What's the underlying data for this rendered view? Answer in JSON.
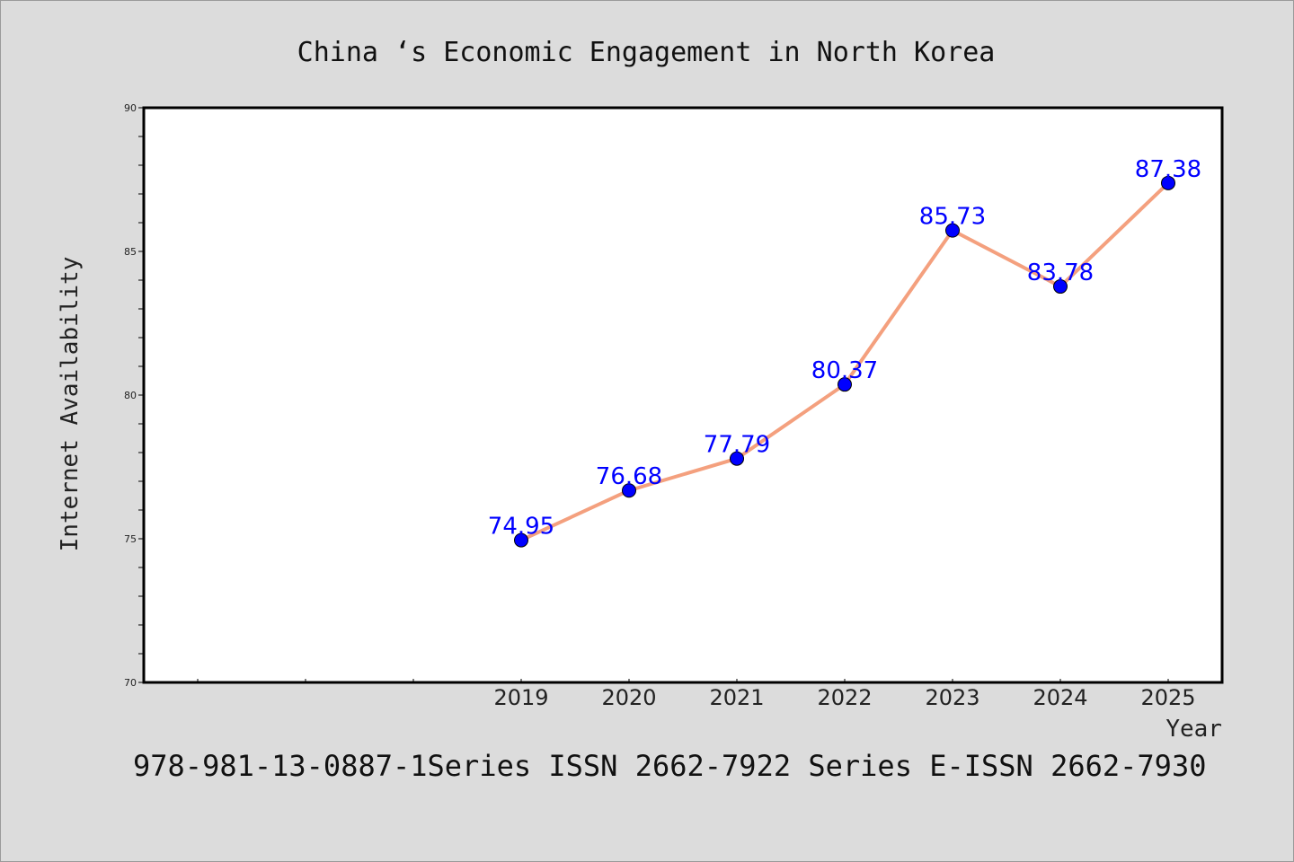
{
  "chart_data": {
    "type": "line",
    "title": "China ‘s Economic Engagement in North Korea",
    "xlabel": "Year",
    "ylabel": "Internet Availability",
    "categories": [
      "2019",
      "2020",
      "2021",
      "2022",
      "2023",
      "2024",
      "2025"
    ],
    "x_slot_count": 10,
    "series": [
      {
        "values": [
          74.95,
          76.68,
          77.79,
          80.37,
          85.73,
          83.78,
          87.38
        ],
        "labels": [
          "74.95",
          "76.68",
          "77.79",
          "80.37",
          "85.73",
          "83.78",
          "87.38"
        ],
        "line_color": "#f4a07e",
        "marker_color": "#0000ff"
      }
    ],
    "ylim": [
      70,
      90
    ],
    "yticks": [
      "70",
      "75",
      "80",
      "85",
      "90"
    ],
    "grid": false,
    "legend": "none"
  },
  "footer": {
    "text": "978-981-13-0887-1Series ISSN 2662-7922 Series E-ISSN 2662-7930"
  }
}
